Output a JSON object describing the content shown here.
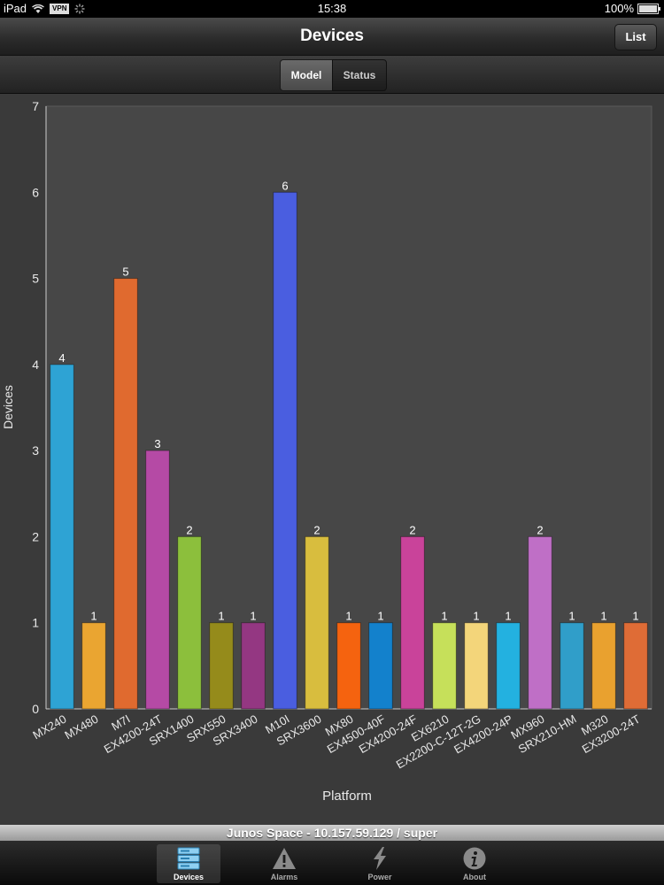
{
  "status_bar": {
    "device": "iPad",
    "vpn": "VPN",
    "time": "15:38",
    "battery": "100%"
  },
  "nav": {
    "title": "Devices",
    "list_button": "List"
  },
  "segments": {
    "model": "Model",
    "status": "Status",
    "selected": "Model"
  },
  "chart_data": {
    "type": "bar",
    "xlabel": "Platform",
    "ylabel": "Devices",
    "ylim": [
      0,
      7
    ],
    "yticks": [
      0,
      1,
      2,
      3,
      4,
      5,
      6,
      7
    ],
    "categories": [
      "MX240",
      "MX480",
      "M7I",
      "EX4200-24T",
      "SRX1400",
      "SRX550",
      "SRX3400",
      "M10I",
      "SRX3600",
      "MX80",
      "EX4500-40F",
      "EX4200-24F",
      "EX6210",
      "EX2200-C-12T-2G",
      "EX4200-24P",
      "MX960",
      "SRX210-HM",
      "M320",
      "EX3200-24T"
    ],
    "values": [
      4,
      1,
      5,
      3,
      2,
      1,
      1,
      6,
      2,
      1,
      1,
      2,
      1,
      1,
      1,
      2,
      1,
      1,
      1
    ],
    "colors": [
      "#2ea3d4",
      "#eaa531",
      "#e06a2f",
      "#b54aa5",
      "#8cbf3c",
      "#958b1b",
      "#943782",
      "#4a5ee0",
      "#d8bd3e",
      "#f5630f",
      "#1381cc",
      "#c9439a",
      "#c6e05a",
      "#f3d57a",
      "#23b1e0",
      "#bf6fc6",
      "#309ec9",
      "#e9a12f",
      "#df6c36"
    ],
    "grid": false,
    "legend": "none"
  },
  "footer": {
    "connection": "Junos Space - 10.157.59.129 / super"
  },
  "tabs": [
    {
      "label": "Devices",
      "icon": "server-rack-icon",
      "active": true
    },
    {
      "label": "Alarms",
      "icon": "warning-triangle-icon",
      "active": false
    },
    {
      "label": "Power",
      "icon": "lightning-bolt-icon",
      "active": false
    },
    {
      "label": "About",
      "icon": "info-icon",
      "active": false
    }
  ]
}
